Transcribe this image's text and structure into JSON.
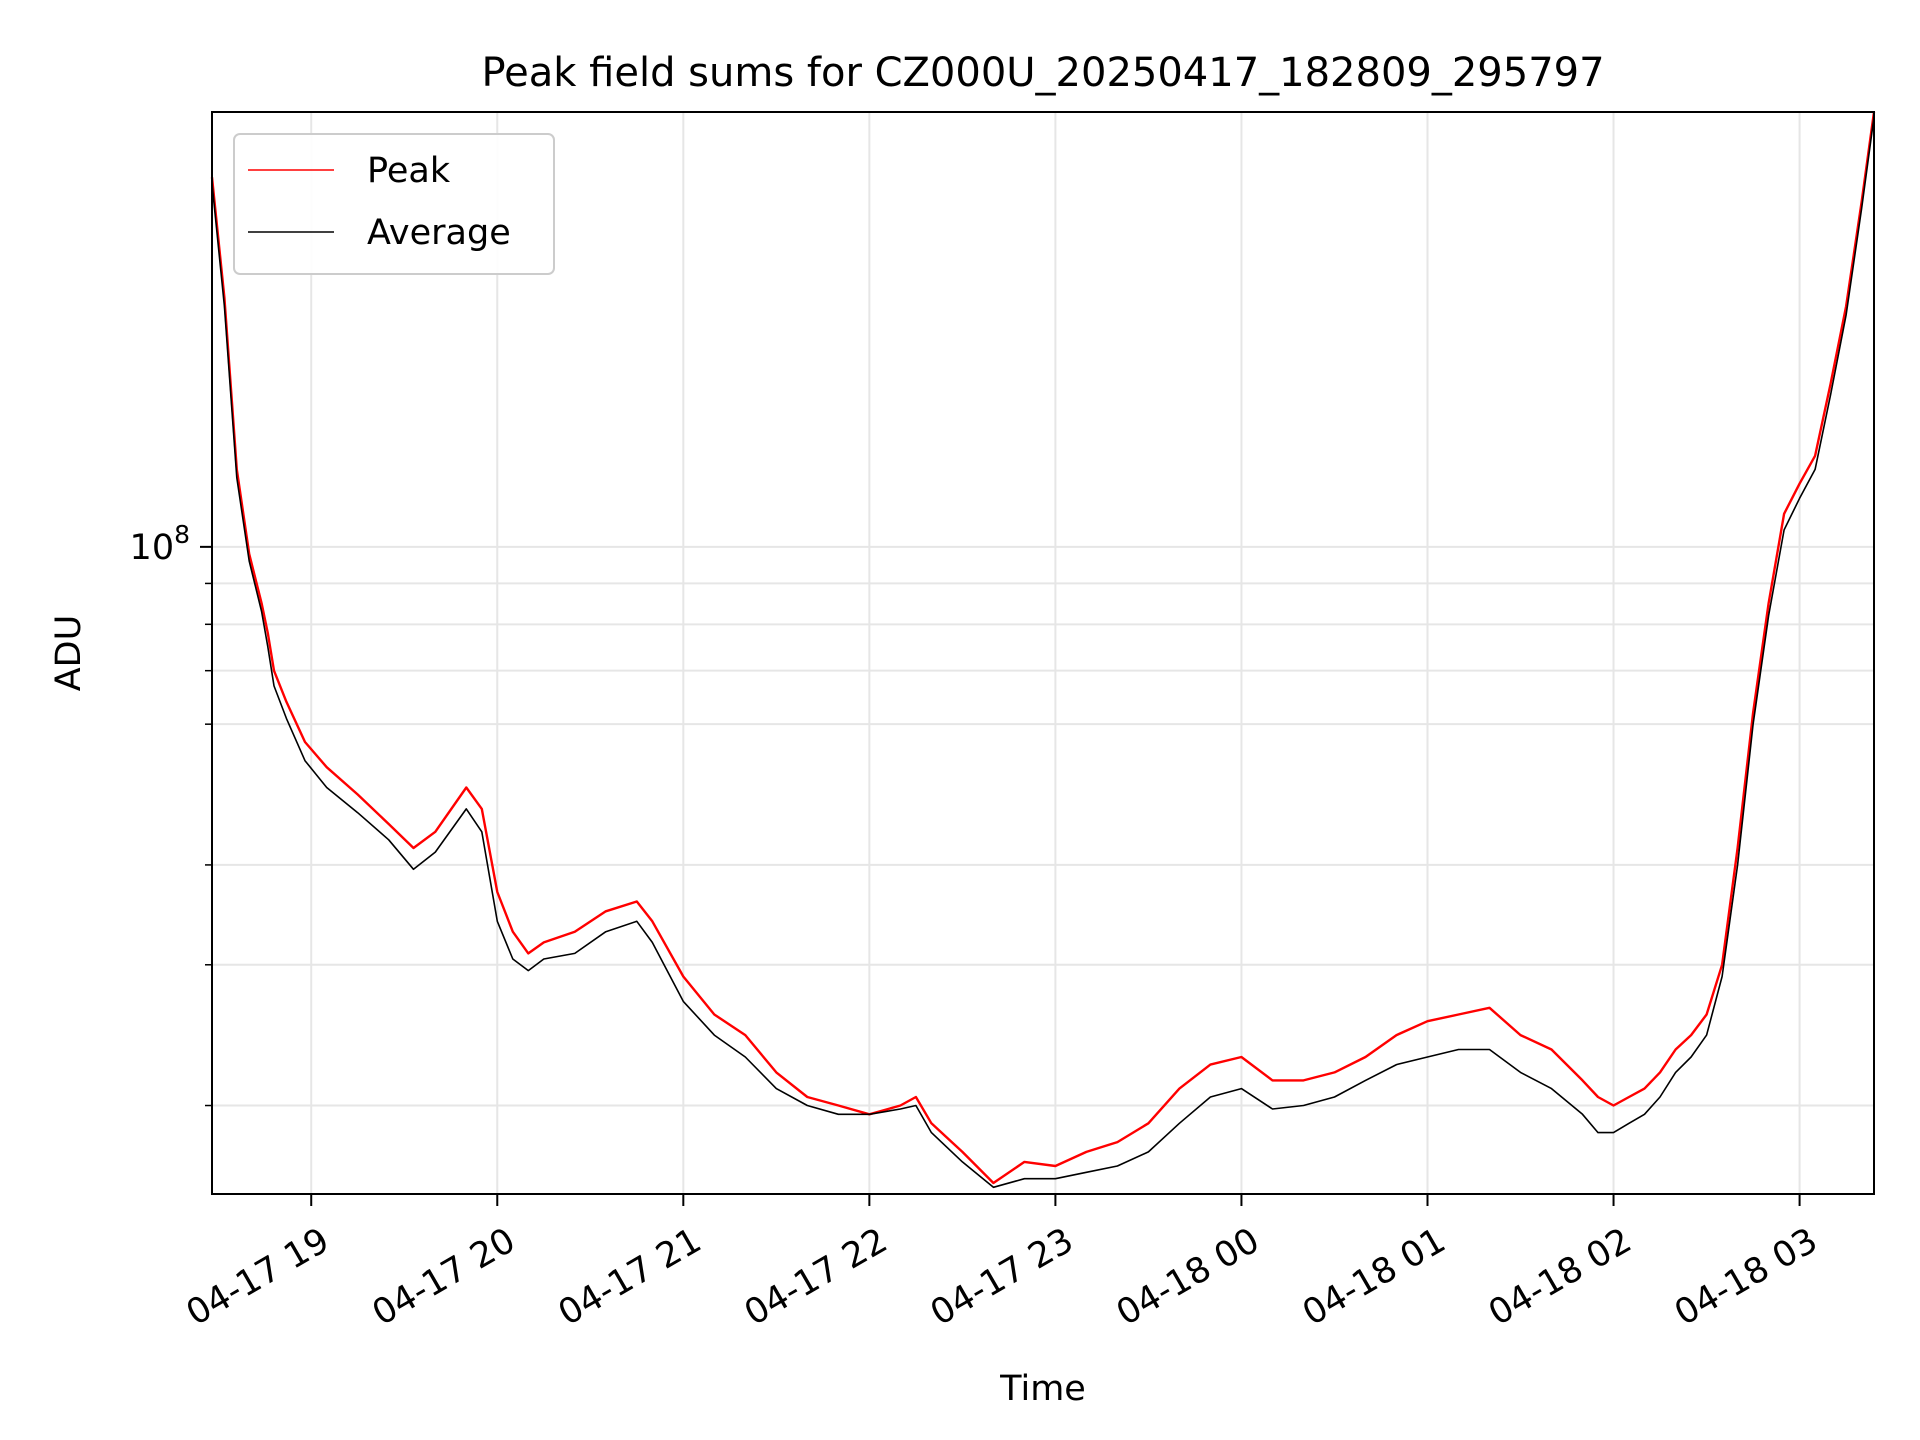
{
  "chart_data": {
    "type": "line",
    "title": "Peak field sums for CZ000U_20250417_182809_295797",
    "xlabel": "Time",
    "ylabel": "ADU",
    "y_scale": "log",
    "y_major_tick_value": 100000000,
    "y_major_tick_base": "10",
    "y_major_tick_exponent": "8",
    "y_minor_ticks": [
      20000000,
      30000000,
      40000000,
      60000000,
      70000000,
      80000000,
      90000000
    ],
    "ylim": [
      15500000,
      350000000
    ],
    "xlim": [
      "2025-04-17 18:28",
      "2025-04-18 03:24"
    ],
    "x_tick_times": [
      "2025-04-17 19:00",
      "2025-04-17 20:00",
      "2025-04-17 21:00",
      "2025-04-17 22:00",
      "2025-04-17 23:00",
      "2025-04-18 00:00",
      "2025-04-18 01:00",
      "2025-04-18 02:00",
      "2025-04-18 03:00"
    ],
    "x_tick_labels": [
      "04-17 19",
      "04-17 20",
      "04-17 21",
      "04-17 22",
      "04-17 23",
      "04-18 00",
      "04-18 01",
      "04-18 02",
      "04-18 03"
    ],
    "grid": true,
    "legend_position": "upper-left",
    "series": [
      {
        "name": "Peak",
        "color": "#ff0000",
        "x": [
          "2025-04-17 18:28",
          "2025-04-17 18:32",
          "2025-04-17 18:36",
          "2025-04-17 18:40",
          "2025-04-17 18:44",
          "2025-04-17 18:46",
          "2025-04-17 18:48",
          "2025-04-17 18:52",
          "2025-04-17 18:58",
          "2025-04-17 19:05",
          "2025-04-17 19:15",
          "2025-04-17 19:25",
          "2025-04-17 19:33",
          "2025-04-17 19:40",
          "2025-04-17 19:50",
          "2025-04-17 19:55",
          "2025-04-17 20:00",
          "2025-04-17 20:05",
          "2025-04-17 20:10",
          "2025-04-17 20:15",
          "2025-04-17 20:25",
          "2025-04-17 20:35",
          "2025-04-17 20:45",
          "2025-04-17 20:50",
          "2025-04-17 21:00",
          "2025-04-17 21:10",
          "2025-04-17 21:20",
          "2025-04-17 21:30",
          "2025-04-17 21:40",
          "2025-04-17 21:50",
          "2025-04-17 22:00",
          "2025-04-17 22:10",
          "2025-04-17 22:15",
          "2025-04-17 22:20",
          "2025-04-17 22:30",
          "2025-04-17 22:40",
          "2025-04-17 22:50",
          "2025-04-17 23:00",
          "2025-04-17 23:10",
          "2025-04-17 23:20",
          "2025-04-17 23:30",
          "2025-04-17 23:40",
          "2025-04-17 23:50",
          "2025-04-18 00:00",
          "2025-04-18 00:10",
          "2025-04-18 00:20",
          "2025-04-18 00:30",
          "2025-04-18 00:40",
          "2025-04-18 00:50",
          "2025-04-18 01:00",
          "2025-04-18 01:10",
          "2025-04-18 01:20",
          "2025-04-18 01:30",
          "2025-04-18 01:40",
          "2025-04-18 01:50",
          "2025-04-18 01:55",
          "2025-04-18 02:00",
          "2025-04-18 02:05",
          "2025-04-18 02:10",
          "2025-04-18 02:15",
          "2025-04-18 02:20",
          "2025-04-18 02:25",
          "2025-04-18 02:30",
          "2025-04-18 02:35",
          "2025-04-18 02:40",
          "2025-04-18 02:45",
          "2025-04-18 02:50",
          "2025-04-18 02:55",
          "2025-04-18 03:00",
          "2025-04-18 03:05",
          "2025-04-18 03:10",
          "2025-04-18 03:15",
          "2025-04-18 03:20",
          "2025-04-18 03:24"
        ],
        "values": [
          290000000,
          205000000,
          125000000,
          98000000,
          85000000,
          78000000,
          70000000,
          64000000,
          57000000,
          53000000,
          49000000,
          45000000,
          42000000,
          44000000,
          50000000,
          47000000,
          37000000,
          33000000,
          31000000,
          32000000,
          33000000,
          35000000,
          36000000,
          34000000,
          29000000,
          26000000,
          24500000,
          22000000,
          20500000,
          20000000,
          19500000,
          20000000,
          20500000,
          19000000,
          17500000,
          16000000,
          17000000,
          16800000,
          17500000,
          18000000,
          19000000,
          21000000,
          22500000,
          23000000,
          21500000,
          21500000,
          22000000,
          23000000,
          24500000,
          25500000,
          26000000,
          26500000,
          24500000,
          23500000,
          21500000,
          20500000,
          20000000,
          20500000,
          21000000,
          22000000,
          23500000,
          24500000,
          26000000,
          30000000,
          42000000,
          62000000,
          85000000,
          110000000,
          120000000,
          130000000,
          160000000,
          200000000,
          270000000,
          350000000
        ]
      },
      {
        "name": "Average",
        "color": "#000000",
        "x": [
          "2025-04-17 18:28",
          "2025-04-17 18:32",
          "2025-04-17 18:36",
          "2025-04-17 18:40",
          "2025-04-17 18:44",
          "2025-04-17 18:46",
          "2025-04-17 18:48",
          "2025-04-17 18:52",
          "2025-04-17 18:58",
          "2025-04-17 19:05",
          "2025-04-17 19:15",
          "2025-04-17 19:25",
          "2025-04-17 19:33",
          "2025-04-17 19:40",
          "2025-04-17 19:50",
          "2025-04-17 19:55",
          "2025-04-17 20:00",
          "2025-04-17 20:05",
          "2025-04-17 20:10",
          "2025-04-17 20:15",
          "2025-04-17 20:25",
          "2025-04-17 20:35",
          "2025-04-17 20:45",
          "2025-04-17 20:50",
          "2025-04-17 21:00",
          "2025-04-17 21:10",
          "2025-04-17 21:20",
          "2025-04-17 21:30",
          "2025-04-17 21:40",
          "2025-04-17 21:50",
          "2025-04-17 22:00",
          "2025-04-17 22:10",
          "2025-04-17 22:15",
          "2025-04-17 22:20",
          "2025-04-17 22:30",
          "2025-04-17 22:40",
          "2025-04-17 22:50",
          "2025-04-17 23:00",
          "2025-04-17 23:10",
          "2025-04-17 23:20",
          "2025-04-17 23:30",
          "2025-04-17 23:40",
          "2025-04-17 23:50",
          "2025-04-18 00:00",
          "2025-04-18 00:10",
          "2025-04-18 00:20",
          "2025-04-18 00:30",
          "2025-04-18 00:40",
          "2025-04-18 00:50",
          "2025-04-18 01:00",
          "2025-04-18 01:10",
          "2025-04-18 01:20",
          "2025-04-18 01:30",
          "2025-04-18 01:40",
          "2025-04-18 01:50",
          "2025-04-18 01:55",
          "2025-04-18 02:00",
          "2025-04-18 02:05",
          "2025-04-18 02:10",
          "2025-04-18 02:15",
          "2025-04-18 02:20",
          "2025-04-18 02:25",
          "2025-04-18 02:30",
          "2025-04-18 02:35",
          "2025-04-18 02:40",
          "2025-04-18 02:45",
          "2025-04-18 02:50",
          "2025-04-18 02:55",
          "2025-04-18 03:00",
          "2025-04-18 03:05",
          "2025-04-18 03:10",
          "2025-04-18 03:15",
          "2025-04-18 03:20",
          "2025-04-18 03:24"
        ],
        "values": [
          285000000,
          200000000,
          122000000,
          96000000,
          83000000,
          75000000,
          67000000,
          61000000,
          54000000,
          50000000,
          46500000,
          43000000,
          39500000,
          41500000,
          47000000,
          44000000,
          34000000,
          30500000,
          29500000,
          30500000,
          31000000,
          33000000,
          34000000,
          32000000,
          27000000,
          24500000,
          23000000,
          21000000,
          20000000,
          19500000,
          19500000,
          19800000,
          20000000,
          18500000,
          17000000,
          15800000,
          16200000,
          16200000,
          16500000,
          16800000,
          17500000,
          19000000,
          20500000,
          21000000,
          19800000,
          20000000,
          20500000,
          21500000,
          22500000,
          23000000,
          23500000,
          23500000,
          22000000,
          21000000,
          19500000,
          18500000,
          18500000,
          19000000,
          19500000,
          20500000,
          22000000,
          23000000,
          24500000,
          29000000,
          40000000,
          60000000,
          82000000,
          105000000,
          115000000,
          125000000,
          155000000,
          195000000,
          265000000,
          345000000
        ]
      }
    ]
  }
}
